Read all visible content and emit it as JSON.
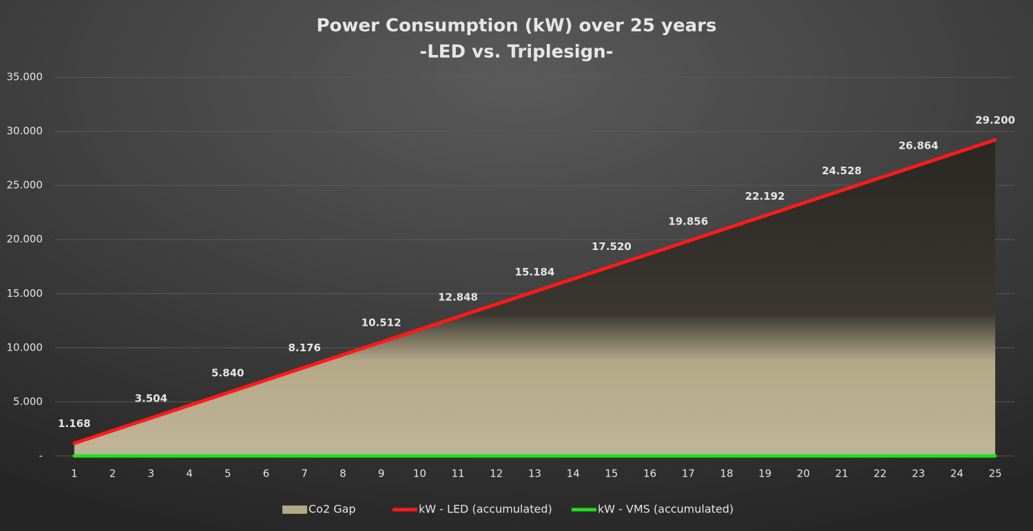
{
  "chart_data": {
    "type": "line",
    "title": "Power Consumption (kW) over 25 years",
    "subtitle": "-LED vs. Triplesign-",
    "categories": [
      "1",
      "2",
      "3",
      "4",
      "5",
      "6",
      "7",
      "8",
      "9",
      "10",
      "11",
      "12",
      "13",
      "14",
      "15",
      "16",
      "17",
      "18",
      "19",
      "20",
      "21",
      "22",
      "23",
      "24",
      "25"
    ],
    "series": [
      {
        "name": "Co2 Gap",
        "kind": "area",
        "color": "#b3a888",
        "values": [
          1168,
          2336,
          3504,
          4672,
          5840,
          7008,
          8176,
          9344,
          10512,
          11680,
          12848,
          14016,
          15184,
          16352,
          17520,
          18688,
          19856,
          21024,
          22192,
          23360,
          24528,
          25696,
          26864,
          28032,
          29200
        ]
      },
      {
        "name": "kW - LED (accumulated)",
        "kind": "line",
        "color": "#ff1a1a",
        "values": [
          1168,
          2336,
          3504,
          4672,
          5840,
          7008,
          8176,
          9344,
          10512,
          11680,
          12848,
          14016,
          15184,
          16352,
          17520,
          18688,
          19856,
          21024,
          22192,
          23360,
          24528,
          25696,
          26864,
          28032,
          29200
        ],
        "value_labels": [
          "1.168",
          null,
          "3.504",
          null,
          "5.840",
          null,
          "8.176",
          null,
          "10.512",
          null,
          "12.848",
          null,
          "15.184",
          null,
          "17.520",
          null,
          "19.856",
          null,
          "22.192",
          null,
          "24.528",
          null,
          "26.864",
          null,
          "29.200"
        ]
      },
      {
        "name": "kW - VMS (accumulated)",
        "kind": "line",
        "color": "#22e01a",
        "values": [
          0,
          0,
          0,
          0,
          0,
          0,
          0,
          0,
          0,
          0,
          0,
          0,
          0,
          0,
          0,
          0,
          0,
          0,
          0,
          0,
          0,
          0,
          0,
          0,
          0
        ]
      }
    ],
    "ylim": [
      0,
      35000
    ],
    "yticks": [
      {
        "value": 0,
        "label": "-"
      },
      {
        "value": 5000,
        "label": "5.000"
      },
      {
        "value": 10000,
        "label": "10.000"
      },
      {
        "value": 15000,
        "label": "15.000"
      },
      {
        "value": 20000,
        "label": "20.000"
      },
      {
        "value": 25000,
        "label": "25.000"
      },
      {
        "value": 30000,
        "label": "30.000"
      },
      {
        "value": 35000,
        "label": "35.000"
      }
    ],
    "grid": true,
    "legend": "bottom"
  }
}
